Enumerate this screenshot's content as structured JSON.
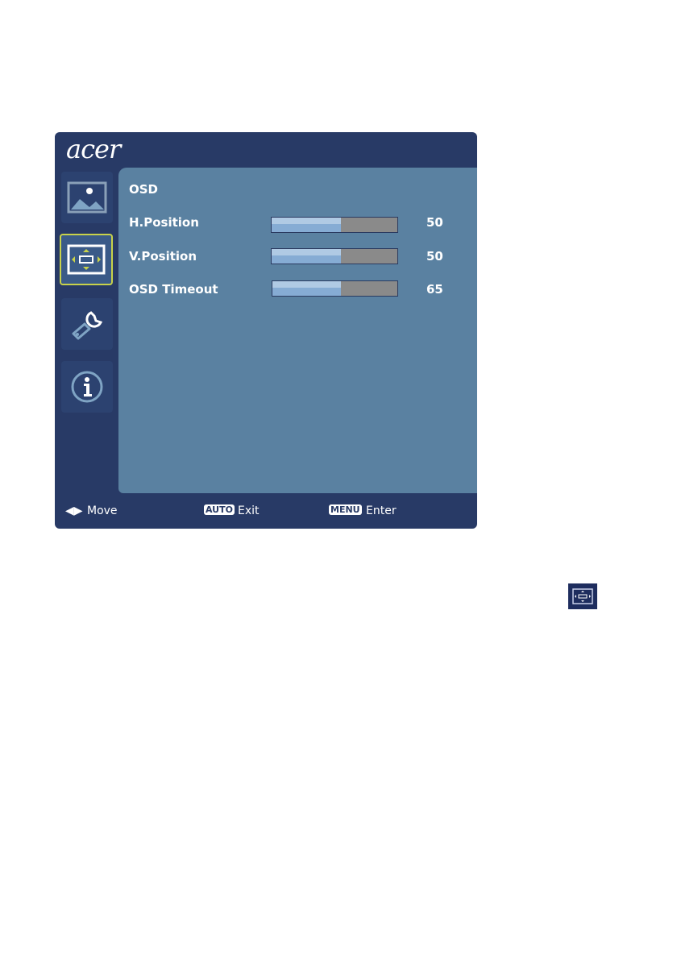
{
  "header": {
    "logo": "acer"
  },
  "sidebar": {
    "items": [
      {
        "icon": "picture-icon",
        "selected": false
      },
      {
        "icon": "position-icon",
        "selected": true
      },
      {
        "icon": "settings-wrench-icon",
        "selected": false
      },
      {
        "icon": "info-icon",
        "selected": false
      }
    ]
  },
  "content": {
    "title": "OSD",
    "rows": [
      {
        "label": "H.Position",
        "value": "50",
        "fill_percent": 55
      },
      {
        "label": "V.Position",
        "value": "50",
        "fill_percent": 55
      },
      {
        "label": "OSD Timeout",
        "value": "65",
        "fill_percent": 55
      }
    ]
  },
  "footer": {
    "move": "Move",
    "auto_key": "AUTO",
    "exit": "Exit",
    "menu_key": "MENU",
    "enter": "Enter"
  },
  "colors": {
    "frame": "#283a66",
    "panel": "#5a81a1",
    "selected_border": "#c8d24a"
  }
}
